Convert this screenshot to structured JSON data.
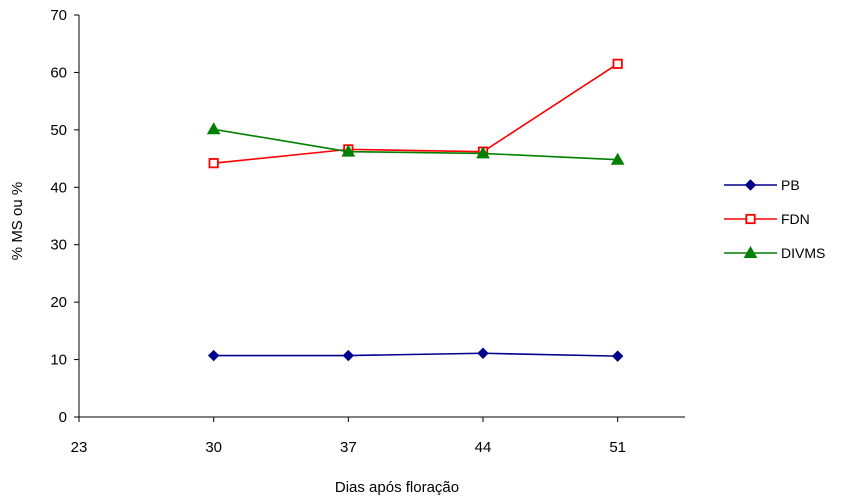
{
  "chart_data": {
    "type": "line",
    "title": "",
    "xlabel": "Dias após floração",
    "ylabel": "% MS ou %",
    "x": [
      30,
      37,
      44,
      51
    ],
    "xlim": [
      23,
      54.5
    ],
    "xticks": [
      23,
      30,
      37,
      44,
      51
    ],
    "ylim": [
      0,
      70
    ],
    "yticks": [
      0,
      10,
      20,
      30,
      40,
      50,
      60,
      70
    ],
    "grid": false,
    "legend_position": "right",
    "series": [
      {
        "name": "PB",
        "color": "#00008B",
        "marker": "diamond",
        "values": [
          10.7,
          10.7,
          11.1,
          10.6
        ]
      },
      {
        "name": "FDN",
        "color": "#FF0000",
        "marker": "square",
        "values": [
          44.2,
          46.6,
          46.2,
          61.5
        ]
      },
      {
        "name": "DIVMS",
        "color": "#008000",
        "marker": "triangle",
        "values": [
          50.1,
          46.2,
          45.9,
          44.8
        ]
      }
    ]
  }
}
